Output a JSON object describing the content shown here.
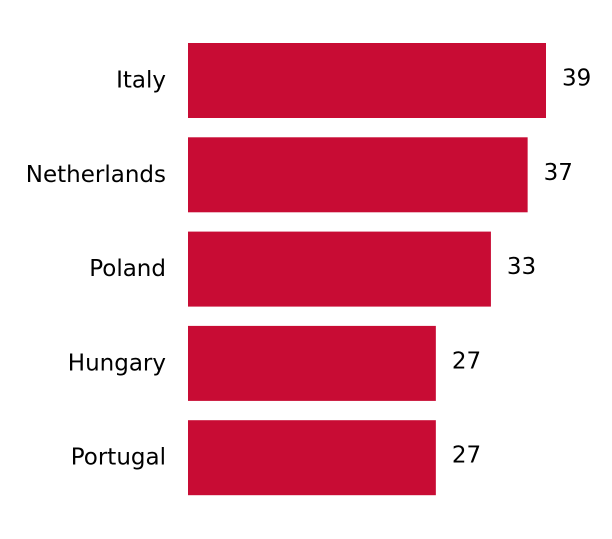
{
  "colors": {
    "bar": "#c80c34",
    "text": "#000000",
    "background": "#ffffff"
  },
  "chart_data": {
    "type": "bar",
    "orientation": "horizontal",
    "categories": [
      "Italy",
      "Netherlands",
      "Poland",
      "Hungary",
      "Portugal"
    ],
    "values": [
      39,
      37,
      33,
      27,
      27
    ],
    "xlim": [
      0,
      39
    ],
    "grid": false,
    "legend": "none",
    "data_labels": true
  }
}
